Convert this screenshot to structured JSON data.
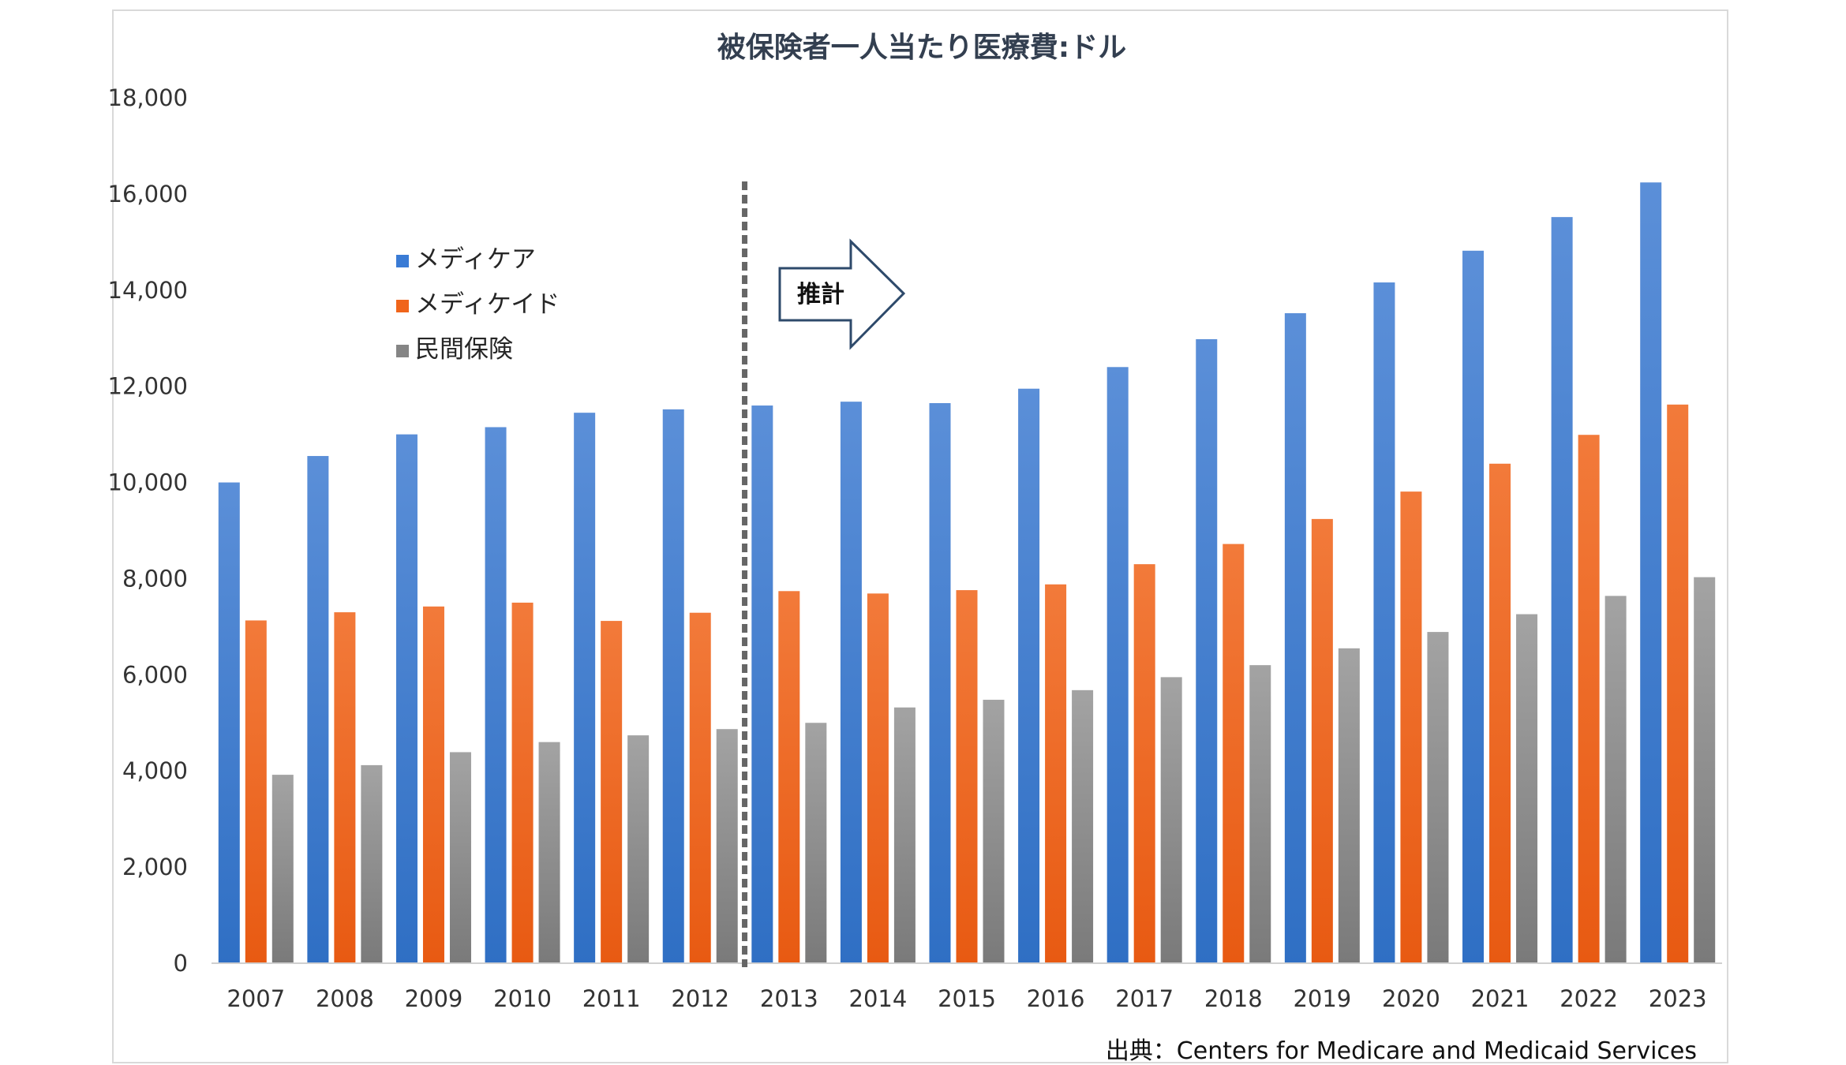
{
  "chart_data": {
    "type": "bar",
    "title": "被保険者一人当たり医療費:ドル",
    "categories": [
      "2007",
      "2008",
      "2009",
      "2010",
      "2011",
      "2012",
      "2013",
      "2014",
      "2015",
      "2016",
      "2017",
      "2018",
      "2019",
      "2020",
      "2021",
      "2022",
      "2023"
    ],
    "series": [
      {
        "name": "メディケア",
        "color": "#4a86d4",
        "values": [
          10000,
          10550,
          11000,
          11150,
          11450,
          11520,
          11600,
          11680,
          11650,
          11950,
          12400,
          12980,
          13520,
          14160,
          14820,
          15520,
          16240
        ]
      },
      {
        "name": "メディケイド",
        "color": "#f26a21",
        "values": [
          7130,
          7300,
          7420,
          7500,
          7120,
          7290,
          7740,
          7690,
          7760,
          7880,
          8300,
          8720,
          9240,
          9810,
          10390,
          10990,
          11620
        ]
      },
      {
        "name": "民間保険",
        "color": "#8c8c8c",
        "values": [
          3920,
          4120,
          4390,
          4600,
          4740,
          4870,
          5000,
          5320,
          5480,
          5680,
          5950,
          6200,
          6550,
          6890,
          7260,
          7640,
          8030
        ]
      }
    ],
    "ylim": [
      0,
      18000
    ],
    "yticks": [
      "0",
      "2,000",
      "4,000",
      "6,000",
      "8,000",
      "10,000",
      "12,000",
      "14,000",
      "16,000",
      "18,000"
    ],
    "grid": false,
    "legend_position": "top-left",
    "annotations": {
      "divider_after": "2012",
      "estimate_label": "推計",
      "source": "出典：Centers for Medicare and Medicaid Services"
    }
  }
}
